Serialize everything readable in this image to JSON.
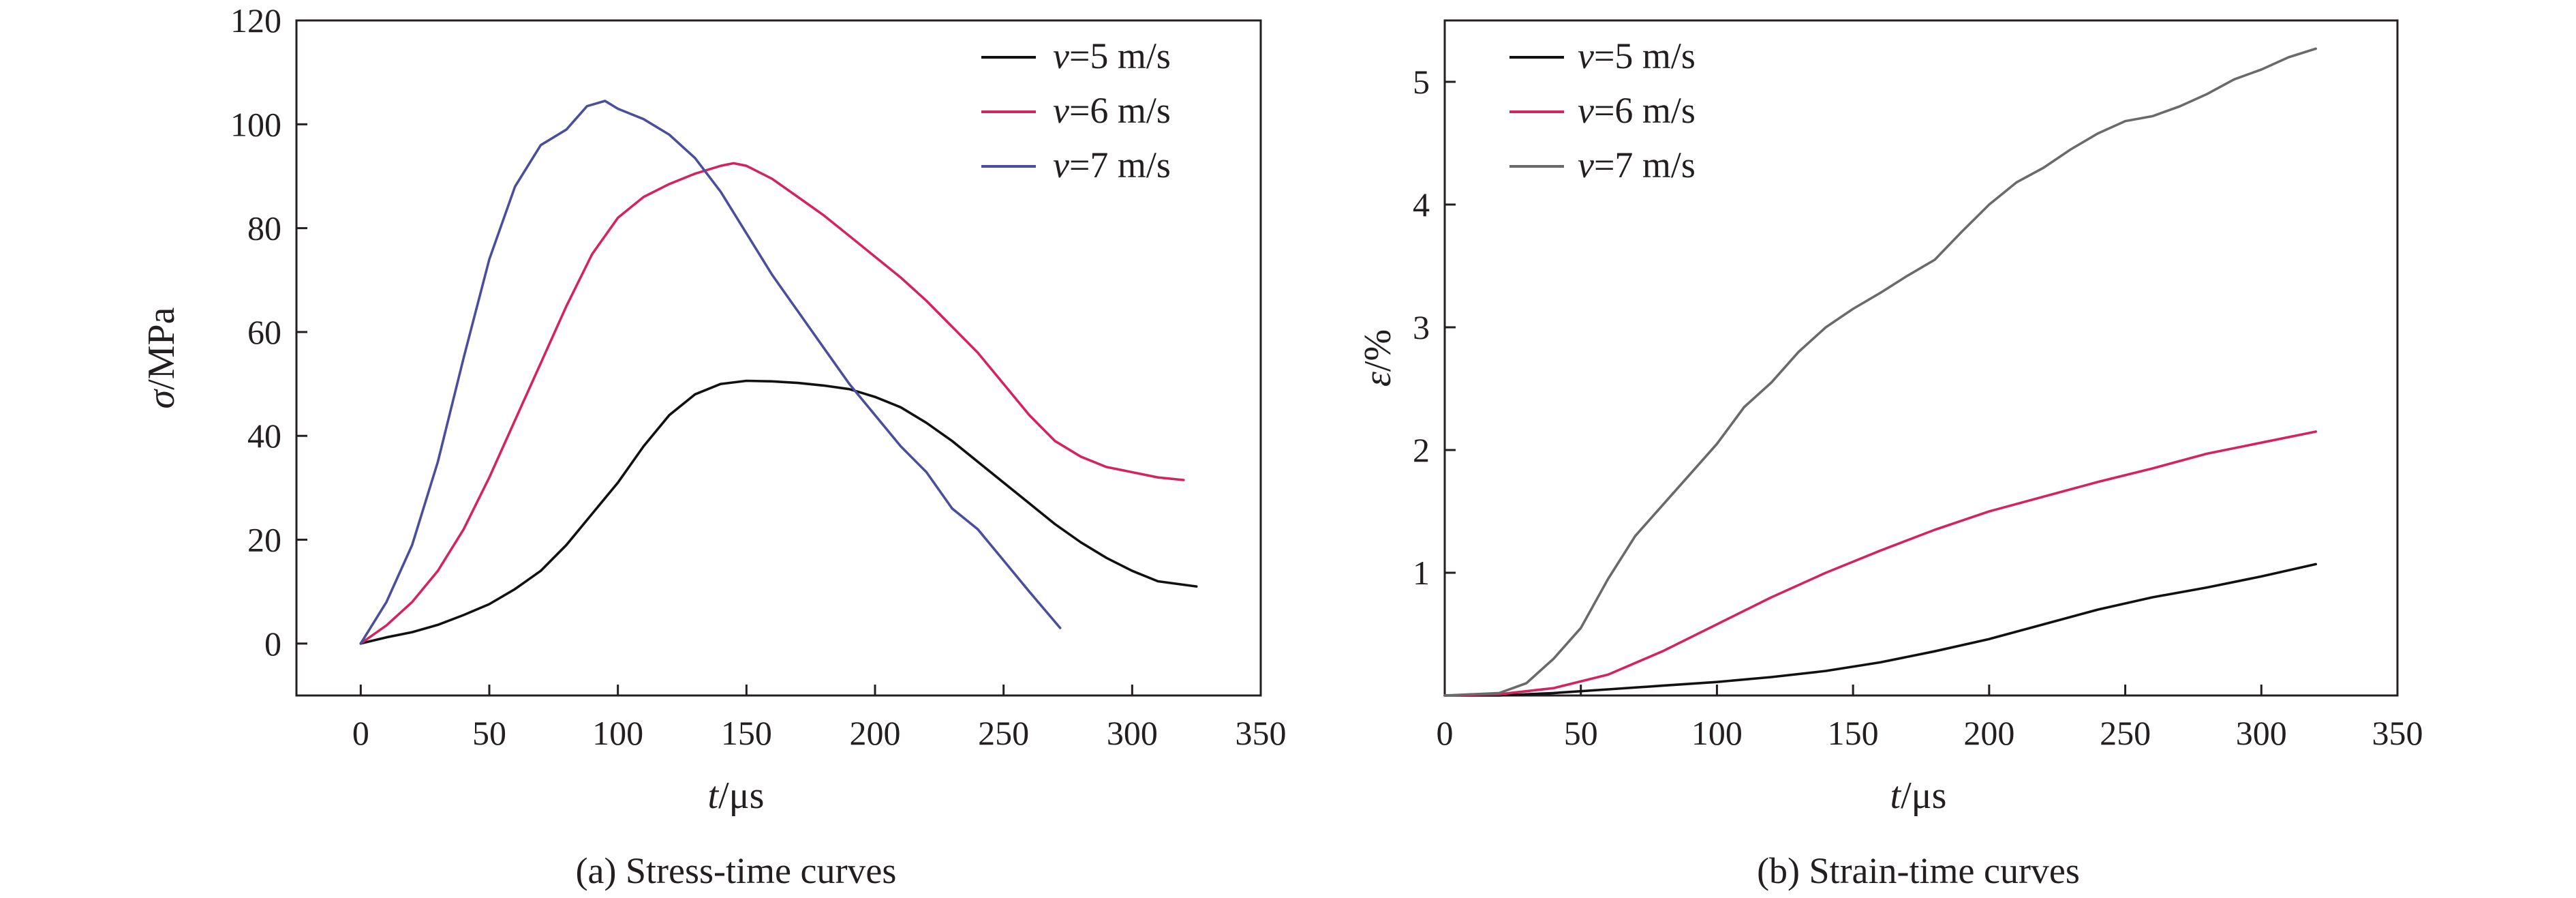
{
  "chart_data": [
    {
      "type": "line",
      "caption": "(a) Stress-time curves",
      "xlabel": {
        "var": "t",
        "unit": "/μs"
      },
      "ylabel": {
        "var": "σ",
        "unit": "/MPa"
      },
      "xlim": [
        -25,
        350
      ],
      "ylim": [
        -10,
        120
      ],
      "xticks": [
        0,
        50,
        100,
        150,
        200,
        250,
        300,
        350
      ],
      "yticks": [
        0,
        20,
        40,
        60,
        80,
        100,
        120
      ],
      "grid": false,
      "legend_position": "top-right",
      "series": [
        {
          "name": {
            "var": "v",
            "rest": "=5 m/s"
          },
          "color": "#111111",
          "points": [
            [
              0,
              0
            ],
            [
              10,
              1.2
            ],
            [
              20,
              2.2
            ],
            [
              30,
              3.6
            ],
            [
              40,
              5.5
            ],
            [
              50,
              7.6
            ],
            [
              60,
              10.5
            ],
            [
              70,
              14
            ],
            [
              80,
              19
            ],
            [
              90,
              25
            ],
            [
              100,
              31
            ],
            [
              110,
              38
            ],
            [
              120,
              44
            ],
            [
              130,
              48
            ],
            [
              140,
              50
            ],
            [
              150,
              50.6
            ],
            [
              160,
              50.5
            ],
            [
              170,
              50.2
            ],
            [
              180,
              49.7
            ],
            [
              190,
              49
            ],
            [
              200,
              47.5
            ],
            [
              210,
              45.5
            ],
            [
              220,
              42.5
            ],
            [
              230,
              39
            ],
            [
              240,
              35
            ],
            [
              250,
              31
            ],
            [
              260,
              27
            ],
            [
              270,
              23
            ],
            [
              280,
              19.5
            ],
            [
              290,
              16.5
            ],
            [
              300,
              14
            ],
            [
              310,
              12
            ],
            [
              325,
              11
            ]
          ]
        },
        {
          "name": {
            "var": "v",
            "rest": "=6 m/s"
          },
          "color": "#d4245f",
          "points": [
            [
              0,
              0
            ],
            [
              10,
              3.5
            ],
            [
              20,
              8
            ],
            [
              30,
              14
            ],
            [
              40,
              22
            ],
            [
              50,
              32
            ],
            [
              60,
              43
            ],
            [
              70,
              54
            ],
            [
              80,
              65
            ],
            [
              90,
              75
            ],
            [
              100,
              82
            ],
            [
              110,
              86
            ],
            [
              120,
              88.5
            ],
            [
              130,
              90.5
            ],
            [
              140,
              92
            ],
            [
              145,
              92.5
            ],
            [
              150,
              92
            ],
            [
              160,
              89.5
            ],
            [
              170,
              86
            ],
            [
              180,
              82.5
            ],
            [
              190,
              78.5
            ],
            [
              200,
              74.5
            ],
            [
              210,
              70.5
            ],
            [
              220,
              66
            ],
            [
              230,
              61
            ],
            [
              240,
              56
            ],
            [
              250,
              50
            ],
            [
              260,
              44
            ],
            [
              270,
              39
            ],
            [
              280,
              36
            ],
            [
              290,
              34
            ],
            [
              300,
              33
            ],
            [
              310,
              32
            ],
            [
              320,
              31.5
            ]
          ]
        },
        {
          "name": {
            "var": "v",
            "rest": "=7 m/s"
          },
          "color": "#4b4e9a",
          "points": [
            [
              0,
              0
            ],
            [
              10,
              8
            ],
            [
              20,
              19
            ],
            [
              30,
              35
            ],
            [
              40,
              55
            ],
            [
              50,
              74
            ],
            [
              60,
              88
            ],
            [
              70,
              96
            ],
            [
              80,
              99
            ],
            [
              88,
              103.5
            ],
            [
              95,
              104.5
            ],
            [
              100,
              103
            ],
            [
              110,
              101
            ],
            [
              120,
              98
            ],
            [
              130,
              93.5
            ],
            [
              140,
              87
            ],
            [
              150,
              79
            ],
            [
              160,
              71
            ],
            [
              170,
              64
            ],
            [
              180,
              57
            ],
            [
              190,
              50
            ],
            [
              200,
              44
            ],
            [
              210,
              38
            ],
            [
              220,
              33
            ],
            [
              230,
              26
            ],
            [
              240,
              22
            ],
            [
              250,
              16
            ],
            [
              260,
              10
            ],
            [
              272,
              3
            ]
          ]
        }
      ]
    },
    {
      "type": "line",
      "caption": "(b) Strain-time curves",
      "xlabel": {
        "var": "t",
        "unit": "/μs"
      },
      "ylabel": {
        "var": "ε",
        "unit": "/%"
      },
      "xlim": [
        0,
        350
      ],
      "ylim": [
        0,
        5.5
      ],
      "xticks": [
        0,
        50,
        100,
        150,
        200,
        250,
        300,
        350
      ],
      "yticks": [
        1,
        2,
        3,
        4,
        5
      ],
      "grid": false,
      "legend_position": "top-left",
      "series": [
        {
          "name": {
            "var": "v",
            "rest": "=5 m/s"
          },
          "color": "#111111",
          "points": [
            [
              0,
              0
            ],
            [
              20,
              0
            ],
            [
              40,
              0.02
            ],
            [
              60,
              0.05
            ],
            [
              80,
              0.08
            ],
            [
              100,
              0.11
            ],
            [
              120,
              0.15
            ],
            [
              140,
              0.2
            ],
            [
              160,
              0.27
            ],
            [
              180,
              0.36
            ],
            [
              200,
              0.46
            ],
            [
              220,
              0.58
            ],
            [
              240,
              0.7
            ],
            [
              260,
              0.8
            ],
            [
              280,
              0.88
            ],
            [
              300,
              0.97
            ],
            [
              320,
              1.07
            ]
          ]
        },
        {
          "name": {
            "var": "v",
            "rest": "=6 m/s"
          },
          "color": "#d4245f",
          "points": [
            [
              0,
              0
            ],
            [
              20,
              0.01
            ],
            [
              40,
              0.06
            ],
            [
              60,
              0.17
            ],
            [
              80,
              0.36
            ],
            [
              100,
              0.58
            ],
            [
              120,
              0.8
            ],
            [
              140,
              1.0
            ],
            [
              160,
              1.18
            ],
            [
              180,
              1.35
            ],
            [
              200,
              1.5
            ],
            [
              220,
              1.62
            ],
            [
              240,
              1.74
            ],
            [
              260,
              1.85
            ],
            [
              280,
              1.97
            ],
            [
              300,
              2.06
            ],
            [
              320,
              2.15
            ]
          ]
        },
        {
          "name": {
            "var": "v",
            "rest": "=7 m/s"
          },
          "color": "#6a6a6a",
          "points": [
            [
              0,
              0
            ],
            [
              20,
              0.02
            ],
            [
              30,
              0.1
            ],
            [
              40,
              0.3
            ],
            [
              50,
              0.55
            ],
            [
              60,
              0.95
            ],
            [
              70,
              1.3
            ],
            [
              80,
              1.55
            ],
            [
              90,
              1.8
            ],
            [
              100,
              2.05
            ],
            [
              110,
              2.35
            ],
            [
              120,
              2.55
            ],
            [
              130,
              2.8
            ],
            [
              140,
              3.0
            ],
            [
              150,
              3.15
            ],
            [
              160,
              3.28
            ],
            [
              170,
              3.42
            ],
            [
              180,
              3.55
            ],
            [
              190,
              3.78
            ],
            [
              200,
              4.0
            ],
            [
              210,
              4.18
            ],
            [
              220,
              4.3
            ],
            [
              230,
              4.45
            ],
            [
              240,
              4.58
            ],
            [
              250,
              4.68
            ],
            [
              260,
              4.72
            ],
            [
              270,
              4.8
            ],
            [
              280,
              4.9
            ],
            [
              290,
              5.02
            ],
            [
              300,
              5.1
            ],
            [
              310,
              5.2
            ],
            [
              320,
              5.27
            ]
          ]
        }
      ]
    }
  ]
}
